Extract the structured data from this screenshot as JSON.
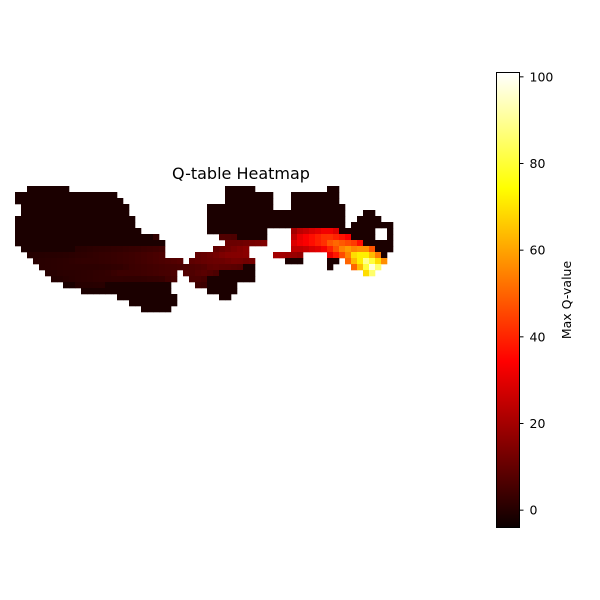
{
  "chart_data": {
    "type": "heatmap",
    "title": "Q-table Heatmap",
    "xlabel": "",
    "ylabel": "",
    "axes_visible": false,
    "colormap": "hot",
    "colorbar": {
      "label": "Max Q-value",
      "range": [
        -4,
        101
      ],
      "ticks": [
        0,
        20,
        40,
        60,
        80,
        100
      ],
      "tick_labels": [
        "0",
        "20",
        "40",
        "60",
        "80",
        "100"
      ]
    },
    "grid": {
      "cols": 65,
      "rows": 40,
      "masked_value": "NaN (white)",
      "background_value": 0
    },
    "land_regions": [
      {
        "name": "west-body",
        "polygon": [
          [
            0,
            1
          ],
          [
            2,
            1
          ],
          [
            2,
            0
          ],
          [
            9,
            0
          ],
          [
            9,
            1
          ],
          [
            16,
            1
          ],
          [
            18,
            2
          ],
          [
            19,
            4
          ],
          [
            20,
            6
          ],
          [
            22,
            8
          ],
          [
            27,
            9
          ],
          [
            28,
            11
          ],
          [
            28,
            13
          ],
          [
            27,
            15
          ],
          [
            26,
            17
          ],
          [
            27,
            19
          ],
          [
            26,
            21
          ],
          [
            22,
            21
          ],
          [
            20,
            20
          ],
          [
            18,
            19
          ],
          [
            16,
            18
          ],
          [
            12,
            18
          ],
          [
            10,
            17
          ],
          [
            7,
            16
          ],
          [
            5,
            14
          ],
          [
            3,
            12
          ],
          [
            1,
            10
          ],
          [
            0,
            9
          ]
        ]
      },
      {
        "name": "north-central",
        "polygon": [
          [
            32,
            3
          ],
          [
            35,
            3
          ],
          [
            35,
            0
          ],
          [
            40,
            0
          ],
          [
            41,
            1
          ],
          [
            43,
            1
          ],
          [
            43,
            4
          ],
          [
            46,
            4
          ],
          [
            46,
            2
          ],
          [
            47,
            1
          ],
          [
            51,
            1
          ],
          [
            54,
            0
          ],
          [
            54,
            2
          ],
          [
            55,
            3
          ],
          [
            55,
            7
          ],
          [
            56,
            8
          ],
          [
            56,
            11
          ],
          [
            54,
            13
          ],
          [
            52,
            14
          ],
          [
            50,
            14
          ],
          [
            48,
            13
          ],
          [
            46,
            13
          ],
          [
            44,
            12
          ],
          [
            43,
            11
          ],
          [
            41,
            10
          ],
          [
            38,
            11
          ],
          [
            36,
            10
          ],
          [
            35,
            9
          ],
          [
            34,
            8
          ],
          [
            32,
            8
          ]
        ]
      },
      {
        "name": "south-central",
        "polygon": [
          [
            30,
            11
          ],
          [
            36,
            10
          ],
          [
            38,
            11
          ],
          [
            40,
            12
          ],
          [
            40,
            15
          ],
          [
            39,
            17
          ],
          [
            37,
            18
          ],
          [
            35,
            19
          ],
          [
            33,
            18
          ],
          [
            31,
            17
          ],
          [
            29,
            16
          ],
          [
            28,
            14
          ]
        ]
      },
      {
        "name": "east-peninsula",
        "polygon": [
          [
            50,
            8
          ],
          [
            53,
            8
          ],
          [
            55,
            7
          ],
          [
            57,
            6
          ],
          [
            57,
            5
          ],
          [
            58,
            5
          ],
          [
            58,
            4
          ],
          [
            60,
            4
          ],
          [
            61,
            5
          ],
          [
            61,
            6
          ],
          [
            63,
            6
          ],
          [
            63,
            8
          ],
          [
            63,
            10
          ],
          [
            62,
            12
          ],
          [
            61,
            14
          ],
          [
            59,
            15
          ],
          [
            57,
            14
          ],
          [
            56,
            13
          ],
          [
            54,
            12
          ],
          [
            52,
            10
          ],
          [
            50,
            9
          ]
        ]
      }
    ],
    "masked_regions": [
      {
        "name": "hole-1",
        "polygon": [
          [
            25,
            8
          ],
          [
            30,
            8
          ],
          [
            30,
            12
          ],
          [
            25,
            12
          ]
        ]
      },
      {
        "name": "hole-2",
        "polygon": [
          [
            42,
            7
          ],
          [
            46,
            7
          ],
          [
            46,
            11
          ],
          [
            42,
            11
          ]
        ]
      },
      {
        "name": "hole-3",
        "polygon": [
          [
            48,
            11
          ],
          [
            52,
            11
          ],
          [
            52,
            17
          ],
          [
            48,
            17
          ]
        ]
      },
      {
        "name": "hole-4",
        "polygon": [
          [
            41,
            12
          ],
          [
            45,
            12
          ],
          [
            45,
            16
          ],
          [
            41,
            16
          ]
        ]
      },
      {
        "name": "hole-5",
        "polygon": [
          [
            37,
            16
          ],
          [
            41,
            16
          ],
          [
            41,
            20
          ],
          [
            37,
            20
          ]
        ]
      },
      {
        "name": "hole-6",
        "polygon": [
          [
            0,
            3
          ],
          [
            1,
            3
          ],
          [
            1,
            5
          ],
          [
            0,
            5
          ]
        ]
      },
      {
        "name": "hole-7",
        "polygon": [
          [
            60,
            7
          ],
          [
            62,
            7
          ],
          [
            62,
            9
          ],
          [
            60,
            9
          ]
        ]
      }
    ],
    "hot_paths": [
      {
        "name": "main-trail",
        "points": [
          [
            2,
            13,
            2
          ],
          [
            8,
            13,
            3
          ],
          [
            14,
            12,
            4
          ],
          [
            20,
            12,
            6
          ],
          [
            26,
            12,
            9
          ],
          [
            32,
            12,
            13
          ],
          [
            38,
            11,
            18
          ],
          [
            43,
            11,
            23
          ],
          [
            46,
            10,
            28
          ],
          [
            48,
            9,
            36
          ],
          [
            50,
            9,
            42
          ],
          [
            52,
            9,
            48
          ],
          [
            54,
            10,
            55
          ],
          [
            56,
            11,
            64
          ],
          [
            57,
            12,
            74
          ],
          [
            58,
            12,
            84
          ],
          [
            59,
            13,
            94
          ],
          [
            60,
            14,
            100
          ]
        ],
        "width": 2.2
      },
      {
        "name": "upper-trail",
        "points": [
          [
            22,
            7,
            5
          ],
          [
            28,
            8,
            8
          ],
          [
            33,
            9,
            10
          ],
          [
            38,
            10,
            14
          ],
          [
            42,
            10,
            18
          ]
        ],
        "width": 1.3
      },
      {
        "name": "lower-trail",
        "points": [
          [
            5,
            14,
            1.5
          ],
          [
            10,
            15,
            3
          ],
          [
            15,
            15,
            4
          ],
          [
            20,
            14,
            6
          ],
          [
            26,
            14,
            8
          ],
          [
            30,
            15,
            9
          ],
          [
            34,
            13,
            12
          ],
          [
            38,
            12,
            16
          ]
        ],
        "width": 1.5
      },
      {
        "name": "side-trail",
        "points": [
          [
            17,
            11,
            4
          ],
          [
            22,
            13,
            6
          ],
          [
            27,
            16,
            7
          ],
          [
            31,
            16,
            7
          ]
        ],
        "width": 1.1
      }
    ]
  }
}
